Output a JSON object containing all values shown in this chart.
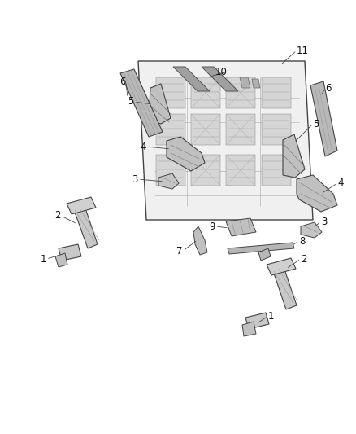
{
  "bg_color": "#ffffff",
  "fig_width": 4.38,
  "fig_height": 5.33,
  "dpi": 100,
  "lc": "#3a3a3a",
  "fc": "#c8c8c8",
  "fc2": "#b0b0b0",
  "fc3": "#d8d8d8"
}
